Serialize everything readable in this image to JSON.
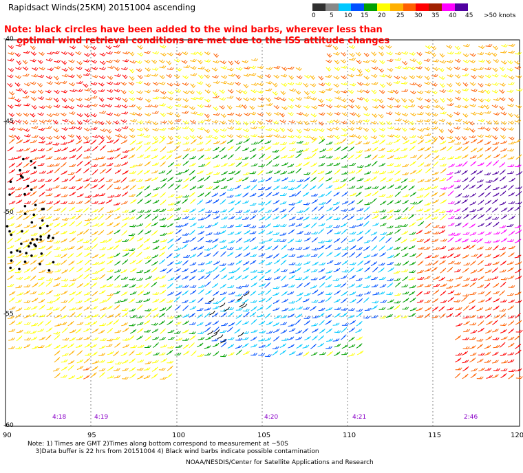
{
  "title": "Rapidsact Winds(25KM) 20151004  ascending",
  "note": "Note: black circles have been added to the wind barbs, wherever less than\n    optimal wind retrieval conditions are met due to the ISS attitude changes",
  "legend": {
    "labels": [
      "0",
      "5",
      "10",
      "15",
      "20",
      "25",
      "30",
      "35",
      "40",
      "45",
      ">50 knots"
    ],
    "colors": [
      "#303030",
      "#888888",
      "#00c8ff",
      "#0050ff",
      "#00a000",
      "#ffff00",
      "#ffb000",
      "#ff6000",
      "#ff0000",
      "#a02000",
      "#ff00ff",
      "#5000a0"
    ]
  },
  "axes": {
    "lat_labels": [
      "-40",
      "-45",
      "-50",
      "-55",
      "-60"
    ],
    "lon_labels": [
      "90",
      "95",
      "100",
      "105",
      "110",
      "115",
      "120"
    ]
  },
  "pass_times": [
    "4:18",
    "4:19",
    "4:20",
    "4:21",
    "2:46"
  ],
  "footnote": "Note: 1) Times are GMT 2)Times along bottom correspond to measurement at ~50S\n    3)Data buffer is 22 hrs from 20151004 4) Black wind barbs indicate possible contamination",
  "credit": "NOAA/NESDIS/Center for Satellite Applications and Research"
}
